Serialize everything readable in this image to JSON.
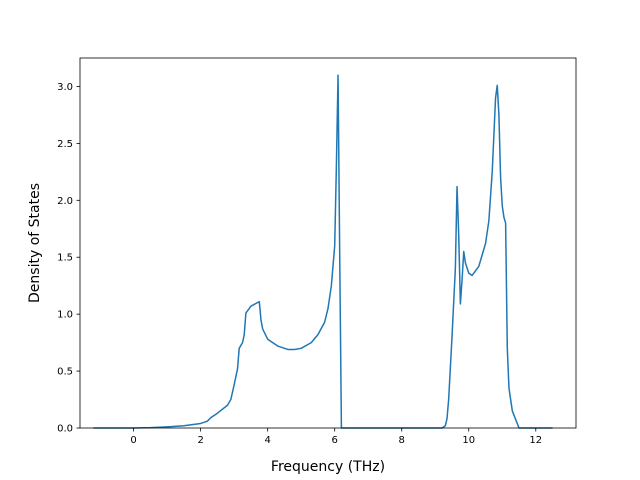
{
  "chart_data": {
    "type": "line",
    "title": "",
    "xlabel": "Frequency (THz)",
    "ylabel": "Density of States",
    "xlim": [
      -1.6,
      13.2
    ],
    "ylim": [
      0.0,
      3.25
    ],
    "x_ticks": [
      0,
      2,
      4,
      6,
      8,
      10,
      12
    ],
    "y_ticks": [
      0.0,
      0.5,
      1.0,
      1.5,
      2.0,
      2.5,
      3.0
    ],
    "x_tick_labels": [
      "0",
      "2",
      "4",
      "6",
      "8",
      "10",
      "12"
    ],
    "y_tick_labels": [
      "0.0",
      "0.5",
      "1.0",
      "1.5",
      "2.0",
      "2.5",
      "3.0"
    ],
    "grid": false,
    "legend": "none",
    "colors": {
      "line": "#1f77b4"
    },
    "series": [
      {
        "x": [
          -1.2,
          -0.5,
          0.0,
          0.5,
          1.0,
          1.5,
          2.0,
          2.2,
          2.3,
          2.5,
          2.8,
          2.9,
          3.0,
          3.1,
          3.15,
          3.25,
          3.3,
          3.35,
          3.5,
          3.75,
          3.8,
          3.85,
          4.0,
          4.3,
          4.6,
          4.8,
          5.0,
          5.3,
          5.5,
          5.7,
          5.8,
          5.9,
          6.0,
          6.05,
          6.1,
          6.15,
          6.2,
          6.3,
          7.0,
          8.0,
          9.0,
          9.2,
          9.3,
          9.35,
          9.4,
          9.5,
          9.6,
          9.65,
          9.7,
          9.75,
          9.8,
          9.85,
          9.9,
          10.0,
          10.1,
          10.3,
          10.5,
          10.6,
          10.7,
          10.8,
          10.85,
          10.9,
          10.95,
          11.0,
          11.05,
          11.1,
          11.15,
          11.2,
          11.3,
          11.5,
          12.0,
          12.5
        ],
        "y": [
          0.0,
          0.0,
          0.0,
          0.003,
          0.01,
          0.02,
          0.04,
          0.06,
          0.09,
          0.13,
          0.2,
          0.25,
          0.38,
          0.52,
          0.7,
          0.75,
          0.82,
          1.01,
          1.07,
          1.11,
          0.95,
          0.87,
          0.78,
          0.72,
          0.69,
          0.69,
          0.7,
          0.75,
          0.82,
          0.93,
          1.05,
          1.25,
          1.6,
          2.3,
          3.1,
          1.5,
          0.0,
          0.0,
          0.0,
          0.0,
          0.0,
          0.0,
          0.02,
          0.08,
          0.25,
          0.8,
          1.4,
          2.12,
          1.7,
          1.09,
          1.3,
          1.55,
          1.45,
          1.36,
          1.34,
          1.42,
          1.62,
          1.82,
          2.25,
          2.9,
          3.01,
          2.75,
          2.2,
          1.95,
          1.85,
          1.8,
          0.7,
          0.35,
          0.15,
          0.0,
          0.0,
          0.0
        ]
      }
    ]
  }
}
